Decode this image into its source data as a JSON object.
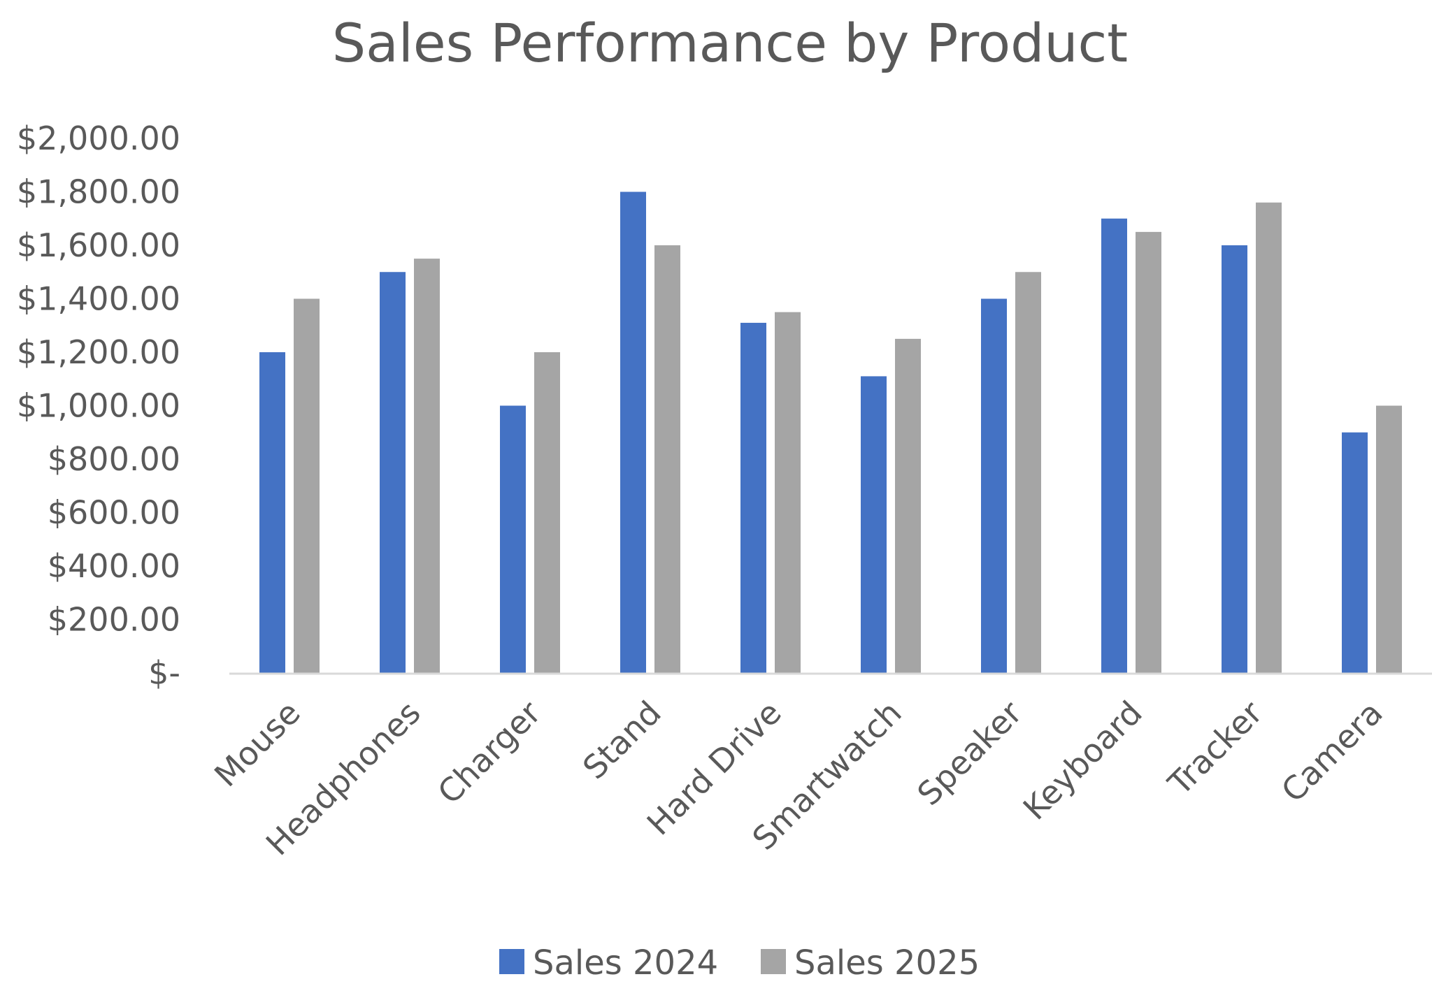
{
  "chart_data": {
    "type": "bar",
    "title": "Sales Performance by Product",
    "xlabel": "",
    "ylabel": "",
    "categories": [
      "Mouse",
      "Headphones",
      "Charger",
      "Stand",
      "Hard Drive",
      "Smartwatch",
      "Speaker",
      "Keyboard",
      "Tracker",
      "Camera"
    ],
    "series": [
      {
        "name": "Sales 2024",
        "color": "#4472C4",
        "values": [
          1200,
          1500,
          1000,
          1800,
          1310,
          1110,
          1400,
          1700,
          1600,
          900
        ]
      },
      {
        "name": "Sales 2025",
        "color": "#A5A5A5",
        "values": [
          1400,
          1550,
          1200,
          1600,
          1350,
          1250,
          1500,
          1650,
          1760,
          1000
        ]
      }
    ],
    "ylim": [
      0,
      2000
    ],
    "yticks": [
      0,
      200,
      400,
      600,
      800,
      1000,
      1200,
      1400,
      1600,
      1800,
      2000
    ],
    "ytick_labels": [
      "$-",
      "$200.00",
      "$400.00",
      "$600.00",
      "$800.00",
      "$1,000.00",
      "$1,200.00",
      "$1,400.00",
      "$1,600.00",
      "$1,800.00",
      "$2,000.00"
    ],
    "grid": false,
    "legend_position": "bottom",
    "axis_color": "#D9D9D9",
    "text_color": "#595959"
  }
}
